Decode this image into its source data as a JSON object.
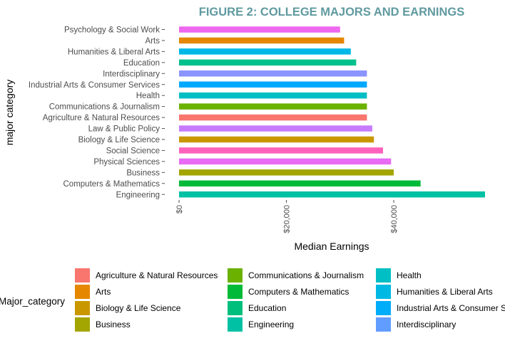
{
  "colors": {
    "title": "#5f9aa0",
    "tick": "#4d4d4d",
    "text": "#000000"
  },
  "chart_data": {
    "type": "bar",
    "orientation": "horizontal",
    "title": "FIGURE 2: COLLEGE MAJORS AND EARNINGS",
    "xlabel": "Median Earnings",
    "ylabel": "major category",
    "xlim": [
      0,
      57000
    ],
    "xticks": [
      0,
      20000,
      40000
    ],
    "xtick_labels": [
      "$0",
      "$20,000",
      "$40,000"
    ],
    "grid": false,
    "legend_position": "bottom",
    "legend_title": "Major_category",
    "categories": [
      "Psychology & Social Work",
      "Arts",
      "Humanities & Liberal Arts",
      "Education",
      "Interdisciplinary",
      "Industrial Arts & Consumer Services",
      "Health",
      "Communications & Journalism",
      "Agriculture & Natural Resources",
      "Law & Public Policy",
      "Biology & Life Science",
      "Social Science",
      "Physical Sciences",
      "Business",
      "Computers & Mathematics",
      "Engineering"
    ],
    "values": [
      30000,
      30750,
      32000,
      33000,
      35000,
      35000,
      35000,
      35000,
      35000,
      36000,
      36300,
      38000,
      39500,
      40000,
      45000,
      57000
    ],
    "bar_colors": [
      "#ED68ED",
      "#E58700",
      "#00B8E7",
      "#00C08B",
      "#8B93FF",
      "#00A9FF",
      "#00BFC4",
      "#6BB100",
      "#F8766D",
      "#C77CFF",
      "#C99800",
      "#FF62BC",
      "#E76BF3",
      "#A3A500",
      "#00BA38",
      "#00C1A3"
    ],
    "legend": [
      {
        "label": "Agriculture & Natural Resources",
        "color": "#F8766D"
      },
      {
        "label": "Arts",
        "color": "#E58700"
      },
      {
        "label": "Biology & Life Science",
        "color": "#C99800"
      },
      {
        "label": "Business",
        "color": "#A3A500"
      },
      {
        "label": "Communications & Journalism",
        "color": "#6BB100"
      },
      {
        "label": "Computers & Mathematics",
        "color": "#00BA38"
      },
      {
        "label": "Education",
        "color": "#00BF7D"
      },
      {
        "label": "Engineering",
        "color": "#00C1A3"
      },
      {
        "label": "Health",
        "color": "#00BFC4"
      },
      {
        "label": "Humanities & Liberal Arts",
        "color": "#00B9E3"
      },
      {
        "label": "Industrial Arts & Consumer Services",
        "color": "#00ADFA"
      },
      {
        "label": "Interdisciplinary",
        "color": "#619CFF"
      }
    ]
  }
}
